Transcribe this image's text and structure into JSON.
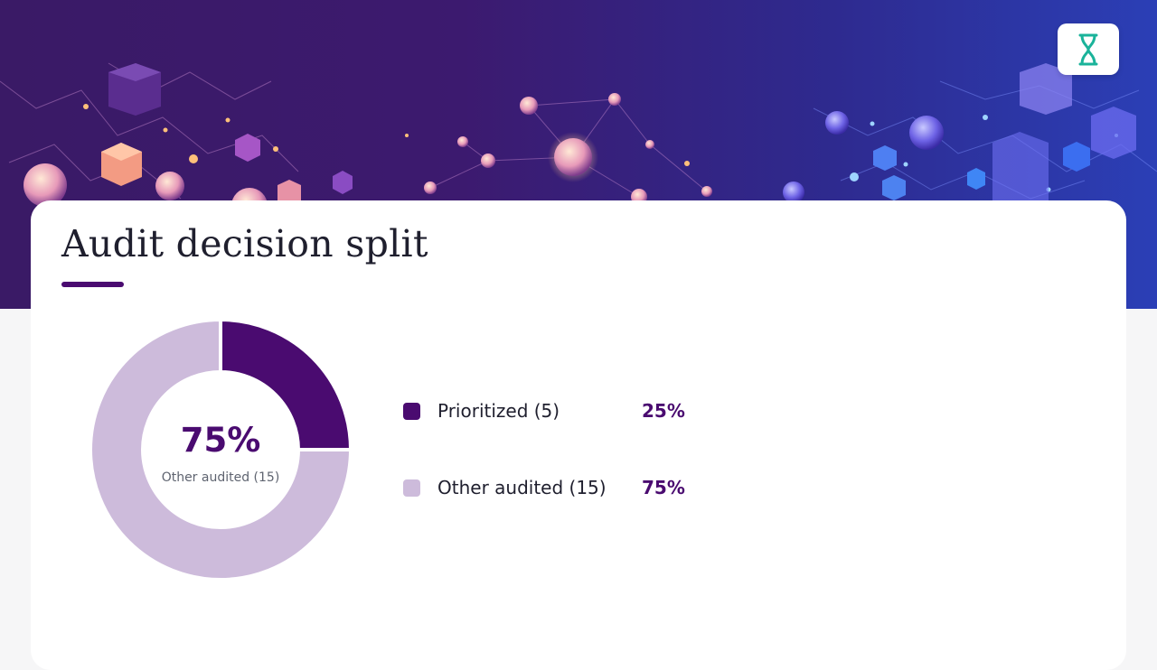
{
  "brand": {
    "logo_icon": "hourglass-logo-icon",
    "logo_color": "#1ab39a"
  },
  "slide": {
    "title": "Audit decision split"
  },
  "chart_data": {
    "type": "pie",
    "variant": "donut",
    "title": "Audit decision split",
    "slices": [
      {
        "label": "Prioritized (5)",
        "count": 5,
        "value": 25,
        "percent_label": "25%",
        "color": "#4a0b70"
      },
      {
        "label": "Other audited (15)",
        "count": 15,
        "value": 75,
        "percent_label": "75%",
        "color": "#cdbbdb"
      }
    ],
    "center": {
      "value": "75%",
      "label": "Other audited (15)"
    },
    "legend_position": "right"
  }
}
